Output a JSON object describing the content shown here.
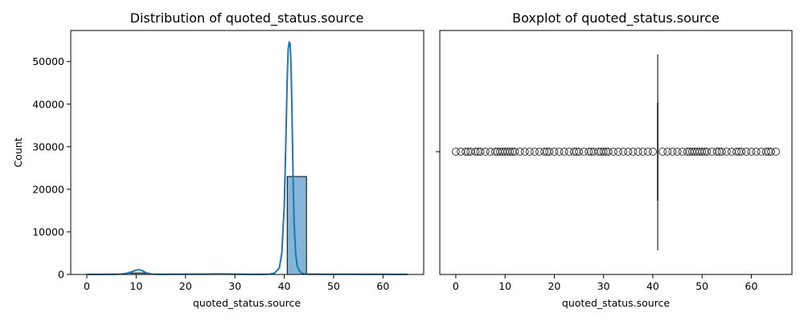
{
  "chart_data": [
    {
      "type": "bar",
      "subtype": "histogram-with-kde",
      "title": "Distribution of quoted_status.source",
      "xlabel": "quoted_status.source",
      "ylabel": "Count",
      "xlim": [
        -3.25,
        68.25
      ],
      "ylim": [
        0,
        57300
      ],
      "xticks": [
        0,
        10,
        20,
        30,
        40,
        50,
        60
      ],
      "yticks": [
        0,
        10000,
        20000,
        30000,
        40000,
        50000
      ],
      "bar_color": "#1f77b4",
      "bins": [
        {
          "x0": 8.1,
          "x1": 11.9,
          "count": 350
        },
        {
          "x0": 40.6,
          "x1": 44.5,
          "count": 23000
        }
      ],
      "kde": {
        "x": [
          0,
          2,
          4,
          6,
          7,
          8,
          9,
          10,
          10.5,
          11,
          11.5,
          12,
          13,
          14,
          16,
          20,
          24,
          26,
          28,
          30,
          32,
          35,
          37,
          38,
          39,
          39.5,
          40,
          40.3,
          40.6,
          40.8,
          41,
          41.2,
          41.4,
          41.6,
          41.8,
          42,
          42.3,
          42.6,
          43,
          43.5,
          44,
          45,
          46,
          48,
          50,
          52,
          55,
          58,
          60,
          62,
          65
        ],
        "y": [
          30,
          30,
          35,
          50,
          100,
          250,
          600,
          1000,
          1100,
          1000,
          700,
          400,
          120,
          50,
          40,
          60,
          80,
          120,
          90,
          60,
          40,
          30,
          80,
          300,
          1500,
          5000,
          16000,
          30000,
          46000,
          53000,
          54500,
          54200,
          48000,
          36000,
          22000,
          12000,
          5000,
          2200,
          900,
          350,
          150,
          80,
          60,
          50,
          50,
          60,
          40,
          50,
          40,
          30,
          30
        ]
      }
    },
    {
      "type": "boxplot",
      "title": "Boxplot of quoted_status.source",
      "xlabel": "quoted_status.source",
      "xlim": [
        -3.25,
        68.25
      ],
      "xticks": [
        0,
        10,
        20,
        30,
        40,
        50,
        60
      ],
      "median": 41,
      "q1": 41,
      "q3": 41,
      "whisker_low": 41,
      "whisker_high": 41,
      "outliers": [
        0,
        1,
        2,
        2.5,
        3,
        4,
        4.5,
        5,
        6,
        7,
        8,
        8.5,
        9,
        9.5,
        10,
        10.5,
        11,
        11.5,
        12,
        13,
        14,
        15,
        16,
        17,
        18,
        18.5,
        19,
        20,
        21,
        22,
        23,
        24,
        24.5,
        25,
        26,
        27,
        27.5,
        28,
        29,
        29.5,
        30,
        30.5,
        31,
        32,
        33,
        34,
        35,
        36,
        37,
        38,
        39,
        40,
        42,
        43,
        44,
        45,
        46,
        47,
        47.5,
        48,
        48.5,
        49,
        49.5,
        50,
        50.5,
        51,
        52,
        53,
        53.5,
        54,
        55,
        56,
        57,
        57.5,
        58,
        59,
        60,
        61,
        62,
        63,
        63.5,
        64,
        65
      ]
    }
  ]
}
